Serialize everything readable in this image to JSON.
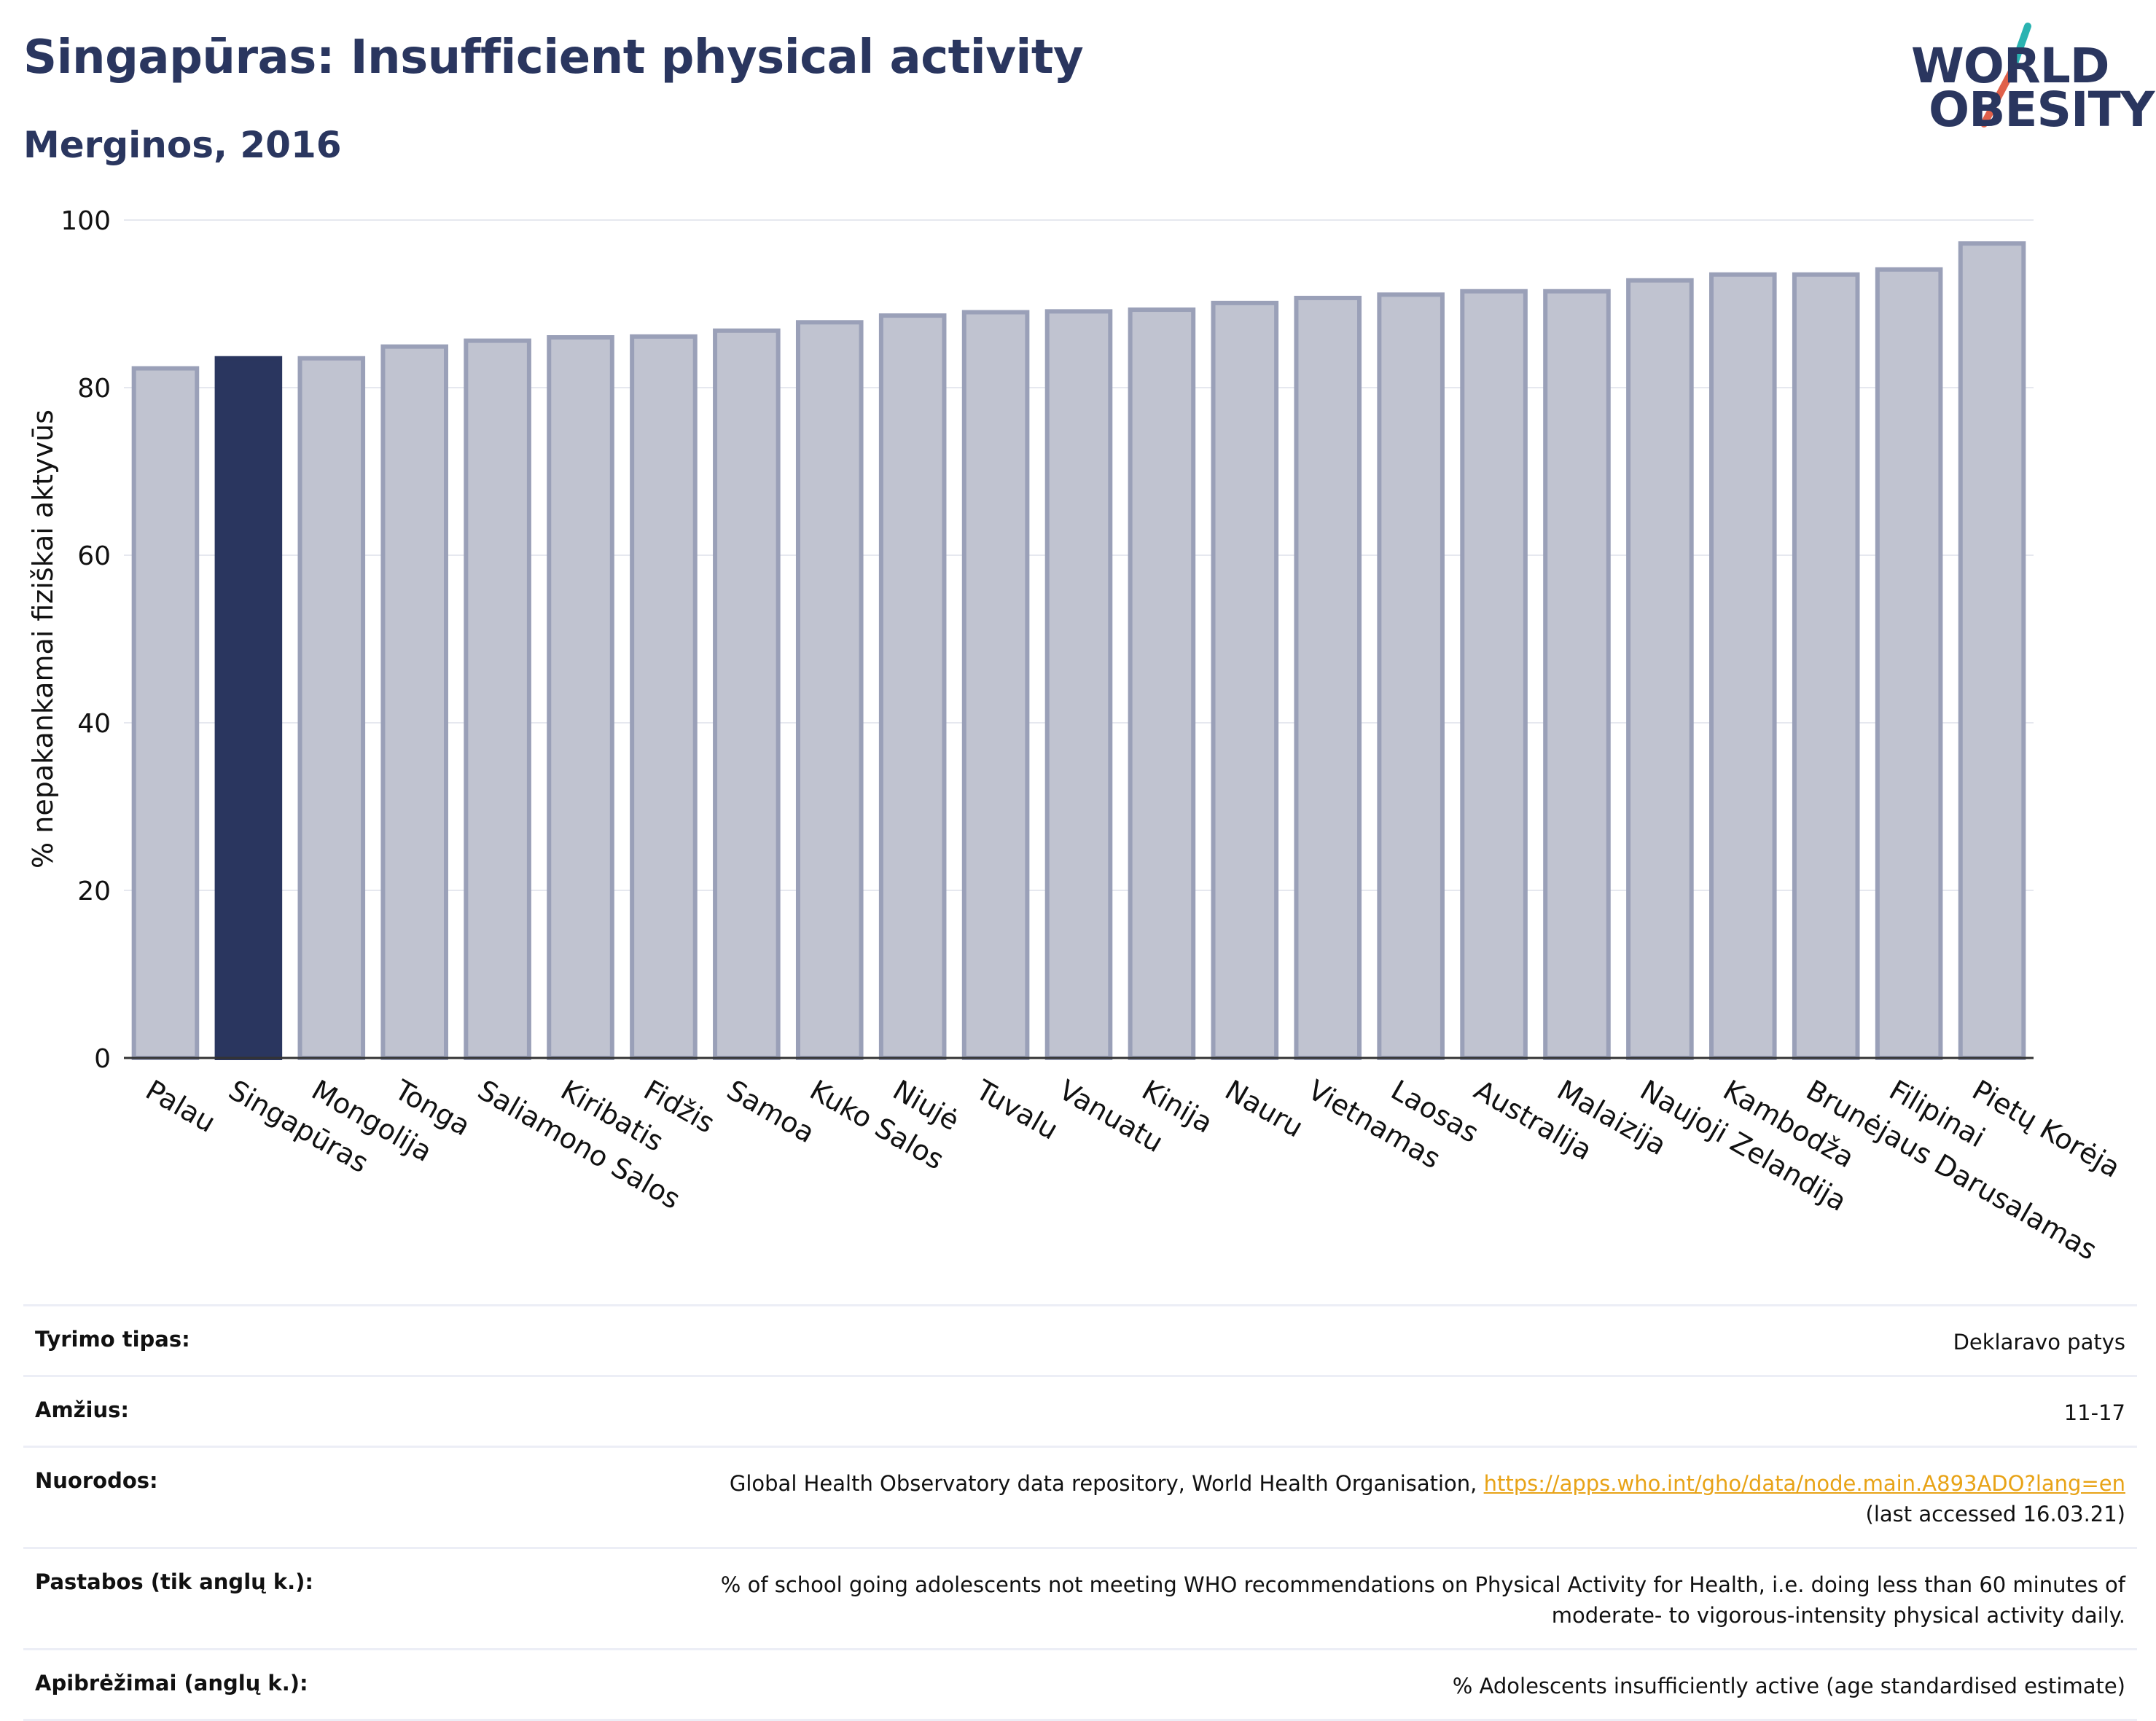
{
  "header": {
    "title": "Singapūras: Insufficient physical activity",
    "subtitle": "Merginos, 2016"
  },
  "logo": {
    "line1": "WORLD",
    "line2": "OBESITY",
    "accent_teal": "#2bb3b1",
    "accent_red": "#e0604a"
  },
  "chart_data": {
    "type": "bar",
    "categories": [
      "Palau",
      "Singapūras",
      "Mongolija",
      "Tonga",
      "Saliamono Salos",
      "Kiribatis",
      "Fidžis",
      "Samoa",
      "Kuko Salos",
      "Niujė",
      "Tuvalu",
      "Vanuatu",
      "Kinija",
      "Nauru",
      "Vietnamas",
      "Laosas",
      "Australija",
      "Malaizija",
      "Naujoji Zelandija",
      "Kambodža",
      "Brunėjaus Darusalamas",
      "Filipinai",
      "Pietų Korėja"
    ],
    "values": [
      82.3,
      83.5,
      83.5,
      84.9,
      85.6,
      86.0,
      86.1,
      86.8,
      87.8,
      88.6,
      89.0,
      89.1,
      89.3,
      90.1,
      90.7,
      91.1,
      91.5,
      91.5,
      92.8,
      93.5,
      93.5,
      94.1,
      97.2
    ],
    "highlight": "Singapūras",
    "ylabel": "% nepakankamai fiziškai aktyvūs",
    "xlabel": "",
    "ylim": [
      0,
      100
    ],
    "yticks": [
      0,
      20,
      40,
      60,
      80,
      100
    ],
    "grid": true,
    "colors": {
      "bar": "#c0c3d0",
      "bar_edge": "#9aa0b8",
      "highlight": "#2a365f",
      "grid": "#e6e8ef",
      "axis": "#333333"
    }
  },
  "footer": {
    "rows": [
      {
        "label": "Tyrimo tipas:",
        "value": "Deklaravo patys"
      },
      {
        "label": "Amžius:",
        "value": "11-17"
      },
      {
        "label": "Nuorodos:",
        "value": "Global Health Observatory data repository, World Health Organisation, ",
        "link": "https://apps.who.int/gho/data/node.main.A893ADO?lang=en",
        "value2": "(last accessed 16.03.21)"
      },
      {
        "label": "Pastabos (tik anglų k.):",
        "value": "% of school going adolescents not meeting WHO recommendations on Physical Activity for Health, i.e. doing less than 60 minutes of",
        "value2": "moderate- to vigorous-intensity physical activity daily."
      },
      {
        "label": "Apibrėžimai (anglų k.):",
        "value": "% Adolescents insufficiently active (age standardised estimate)"
      }
    ]
  }
}
